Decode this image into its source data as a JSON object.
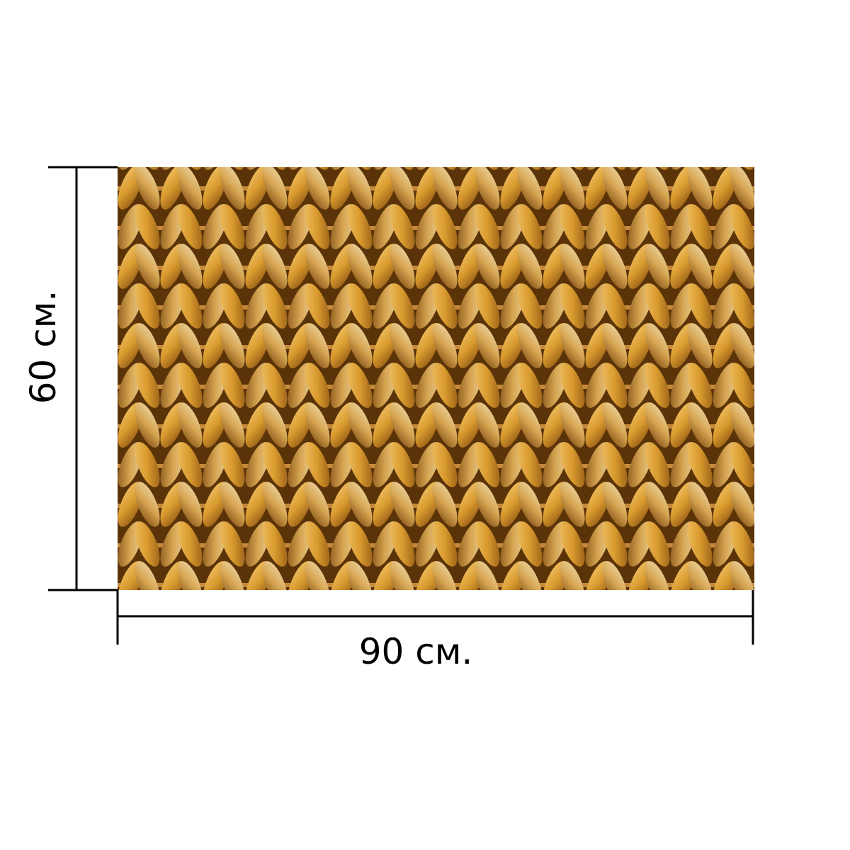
{
  "dimensions": {
    "width_label": "90 см.",
    "height_label": "60 см."
  }
}
